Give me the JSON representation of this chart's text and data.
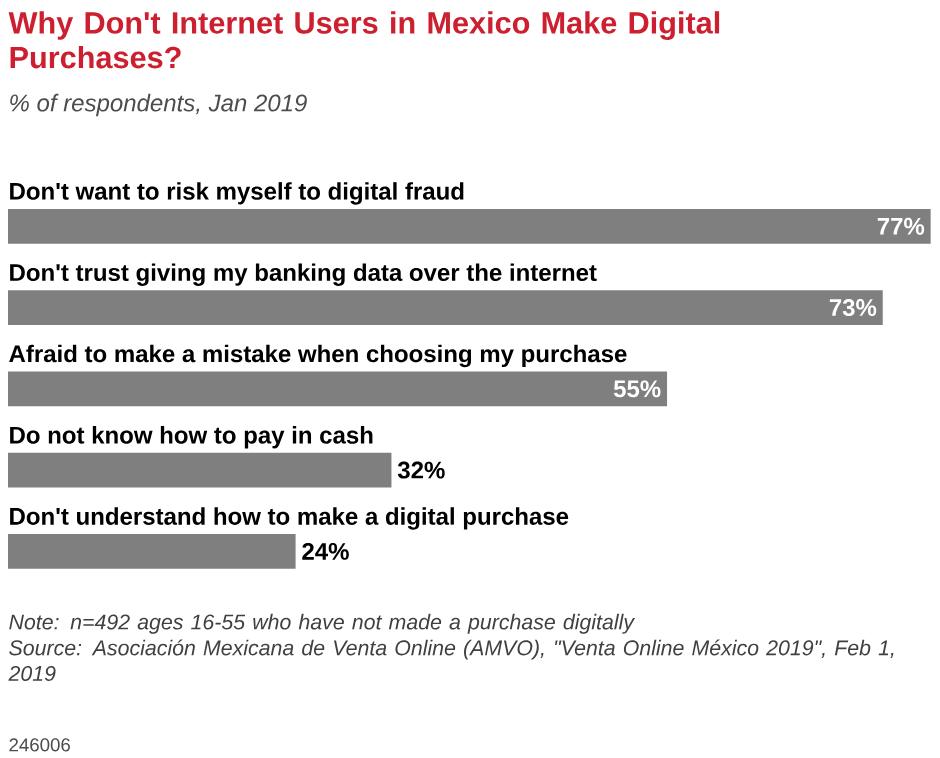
{
  "chart_data": {
    "type": "bar",
    "orientation": "horizontal",
    "title": "Why Don't Internet Users in Mexico Make Digital Purchases?",
    "subtitle": "% of respondents, Jan 2019",
    "categories": [
      "Don't want to risk myself to digital fraud",
      "Don't trust giving my banking data over the internet",
      "Afraid to make a mistake when choosing my purchase",
      "Do not know how to pay in cash",
      "Don't understand how to make a digital purchase"
    ],
    "values": [
      77,
      73,
      55,
      32,
      24
    ],
    "value_labels": [
      "77%",
      "73%",
      "55%",
      "32%",
      "24%"
    ],
    "color": "#7f7f7f",
    "tick_labels": false,
    "annotations": [
      "Note: n=492 ages 16-55 who have not made a purchase digitally",
      "Source: Asociación Mexicana de Venta Online (AMVO), \"Venta Online México 2019\", Feb 1, 2019",
      "246006"
    ]
  }
}
